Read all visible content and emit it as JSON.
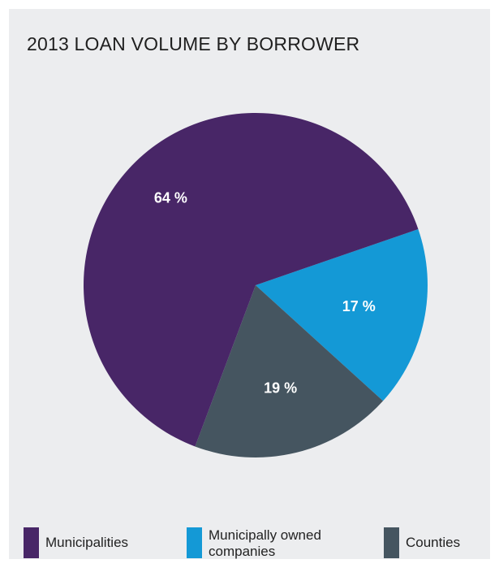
{
  "chart_data": {
    "type": "pie",
    "title": "2013 LOAN VOLUME BY BORROWER",
    "slices": [
      {
        "name": "Municipally owned companies",
        "value": 17,
        "label": "17 %",
        "color": "#1499d6"
      },
      {
        "name": "Counties",
        "value": 19,
        "label": "19 %",
        "color": "#455560"
      },
      {
        "name": "Municipalities",
        "value": 64,
        "label": "64 %",
        "color": "#482667"
      }
    ],
    "legend": [
      {
        "name": "Municipalities",
        "color": "#482667"
      },
      {
        "name": "Municipally owned companies",
        "color": "#1499d6"
      },
      {
        "name": "Counties",
        "color": "#455560"
      }
    ],
    "legend_position": "bottom"
  }
}
